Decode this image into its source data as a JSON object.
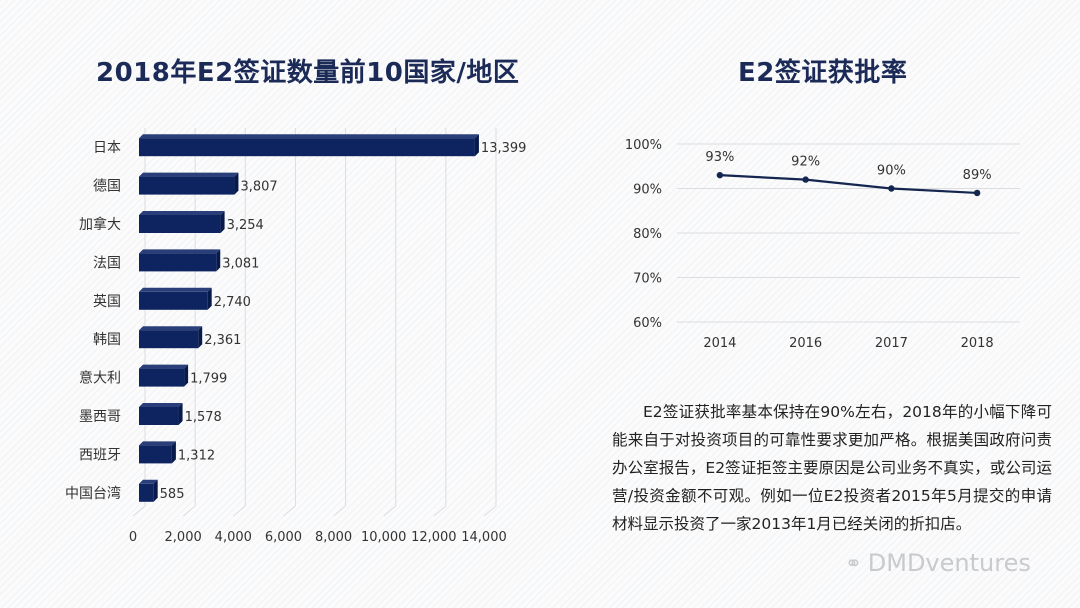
{
  "left_title": "2018年E2签证数量前10国家/地区",
  "right_title": "E2签证获批率",
  "paragraph": "E2签证获批率基本保持在90%左右，2018年的小幅下降可能来自于对投资项目的可靠性要求更加严格。根据美国政府问责办公室报告，E2签证拒签主要原因是公司业务不真实，或公司运营/投资金额不可观。例如一位E2投资者2015年5月提交的申请材料显示投资了一家2013年1月已经关闭的折扣店。",
  "watermark": {
    "icon": "wechat-icon",
    "text": "DMDventures"
  },
  "colors": {
    "bar": "#0e2460",
    "line": "#14254f",
    "title": "#1b2a57"
  },
  "chart_data": [
    {
      "type": "bar",
      "orientation": "horizontal",
      "title": "2018年E2签证数量前10国家/地区",
      "categories": [
        "日本",
        "德国",
        "加拿大",
        "法国",
        "英国",
        "韩国",
        "意大利",
        "墨西哥",
        "西班牙",
        "中国台湾"
      ],
      "values": [
        13399,
        3807,
        3254,
        3081,
        2740,
        2361,
        1799,
        1578,
        1312,
        585
      ],
      "value_labels": [
        "13,399",
        "3,807",
        "3,254",
        "3,081",
        "2,740",
        "2,361",
        "1,799",
        "1,578",
        "1,312",
        "585"
      ],
      "xlim": [
        0,
        14000
      ],
      "xticks": [
        "0",
        "2,000",
        "4,000",
        "6,000",
        "8,000",
        "10,000",
        "12,000",
        "14,000"
      ],
      "xlabel": "",
      "ylabel": "",
      "grid": "vertical"
    },
    {
      "type": "line",
      "title": "E2签证获批率",
      "categories": [
        "2014",
        "2016",
        "2017",
        "2018"
      ],
      "values": [
        93,
        92,
        90,
        89
      ],
      "value_labels": [
        "93%",
        "92%",
        "90%",
        "89%"
      ],
      "ylim": [
        60,
        100
      ],
      "yticks": [
        "60%",
        "70%",
        "80%",
        "90%",
        "100%"
      ],
      "xlabel": "",
      "ylabel": "",
      "grid": "horizontal"
    }
  ]
}
